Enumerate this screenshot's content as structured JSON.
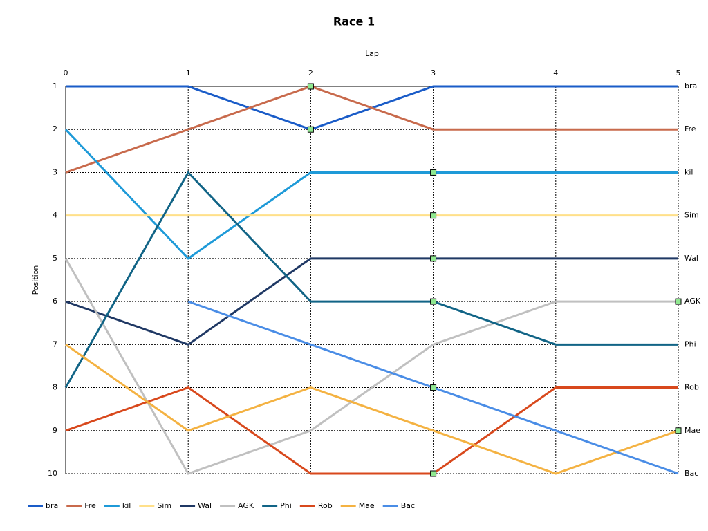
{
  "chart_data": {
    "type": "line",
    "title": "Race 1",
    "x_label": "Lap",
    "y_label": "Position",
    "x": [
      0,
      1,
      2,
      3,
      4,
      5
    ],
    "xlim": [
      0,
      5
    ],
    "xticks": [
      0,
      1,
      2,
      3,
      4,
      5
    ],
    "x_axis_position": "top",
    "ylim": [
      1,
      10
    ],
    "yticks": [
      1,
      2,
      3,
      4,
      5,
      6,
      7,
      8,
      9,
      10
    ],
    "y_reversed": true,
    "grid": true,
    "legend": "bottom-left",
    "end_labels": true,
    "marker_color": "#90e890",
    "series": [
      {
        "name": "bra",
        "color": "#1a5cc8",
        "values": [
          1,
          1,
          2,
          1,
          1,
          1
        ],
        "markers": [
          2
        ]
      },
      {
        "name": "Fre",
        "color": "#c86a4c",
        "values": [
          3,
          2,
          1,
          2,
          2,
          2
        ],
        "markers": [
          2
        ]
      },
      {
        "name": "kil",
        "color": "#1e9ad8",
        "values": [
          2,
          5,
          3,
          3,
          3,
          3
        ],
        "markers": [
          3
        ]
      },
      {
        "name": "Sim",
        "color": "#ffe08a",
        "values": [
          4,
          4,
          4,
          4,
          4,
          4
        ],
        "markers": [
          3
        ]
      },
      {
        "name": "Wal",
        "color": "#1f3864",
        "values": [
          6,
          7,
          5,
          5,
          5,
          5
        ],
        "markers": [
          3
        ]
      },
      {
        "name": "AGK",
        "color": "#c0c0c0",
        "values": [
          5,
          10,
          9,
          7,
          6,
          6
        ],
        "markers": [
          5
        ]
      },
      {
        "name": "Phi",
        "color": "#116486",
        "values": [
          8,
          3,
          6,
          6,
          7,
          7
        ],
        "markers": [
          3
        ]
      },
      {
        "name": "Rob",
        "color": "#d8481c",
        "values": [
          9,
          8,
          10,
          10,
          8,
          8
        ],
        "markers": [
          3
        ]
      },
      {
        "name": "Mae",
        "color": "#f4b242",
        "values": [
          7,
          9,
          8,
          9,
          10,
          9
        ],
        "markers": [
          5
        ]
      },
      {
        "name": "Bac",
        "color": "#4a8de6",
        "values": [
          null,
          6,
          7,
          8,
          9,
          10
        ],
        "markers": [
          3
        ]
      }
    ]
  }
}
